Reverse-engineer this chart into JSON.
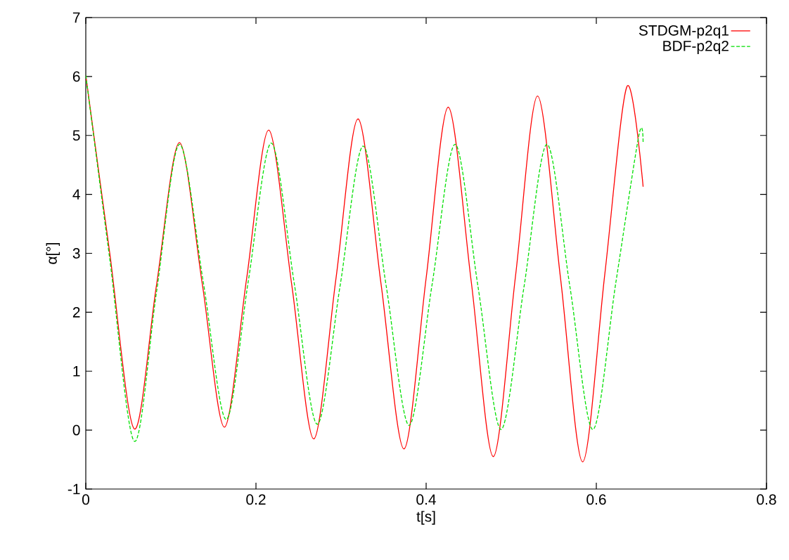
{
  "chart_data": {
    "type": "line",
    "xlabel": "t[s]",
    "ylabel": "α[°]",
    "xlim": [
      0,
      0.8
    ],
    "ylim": [
      -1,
      7
    ],
    "xticks": [
      0,
      0.2,
      0.4,
      0.6,
      0.8
    ],
    "yticks": [
      -1,
      0,
      1,
      2,
      3,
      4,
      5,
      6,
      7
    ],
    "legend": "top right",
    "grid": false,
    "series": [
      {
        "name": "STDGM-p2q1",
        "color": "#ff0000",
        "line_style": "solid",
        "x": [
          0,
          0.028,
          0.057,
          0.083,
          0.11,
          0.137,
          0.163,
          0.189,
          0.215,
          0.242,
          0.268,
          0.294,
          0.32,
          0.347,
          0.374,
          0.4,
          0.426,
          0.453,
          0.479,
          0.505,
          0.531,
          0.558,
          0.584,
          0.61,
          0.636,
          0.655
        ],
        "values": [
          6.02,
          3.02,
          0.02,
          2.45,
          4.88,
          2.47,
          0.05,
          2.57,
          5.09,
          2.47,
          -0.15,
          2.57,
          5.28,
          2.48,
          -0.32,
          2.58,
          5.48,
          2.52,
          -0.45,
          2.61,
          5.67,
          2.57,
          -0.54,
          2.65,
          5.83,
          4.13
        ]
      },
      {
        "name": "BDF-p2q2",
        "color": "#00e000",
        "line_style": "dashed",
        "x": [
          0,
          0.028,
          0.057,
          0.083,
          0.11,
          0.138,
          0.165,
          0.191,
          0.218,
          0.245,
          0.272,
          0.299,
          0.326,
          0.353,
          0.38,
          0.407,
          0.434,
          0.461,
          0.488,
          0.515,
          0.542,
          0.569,
          0.596,
          0.623,
          0.65,
          0.655
        ],
        "values": [
          6.02,
          2.92,
          -0.19,
          2.33,
          4.85,
          2.52,
          0.18,
          2.53,
          4.87,
          2.49,
          0.1,
          2.46,
          4.82,
          2.45,
          0.08,
          2.47,
          4.85,
          2.43,
          0.01,
          2.43,
          4.85,
          2.43,
          0.01,
          2.51,
          5.0,
          4.87
        ]
      }
    ]
  }
}
